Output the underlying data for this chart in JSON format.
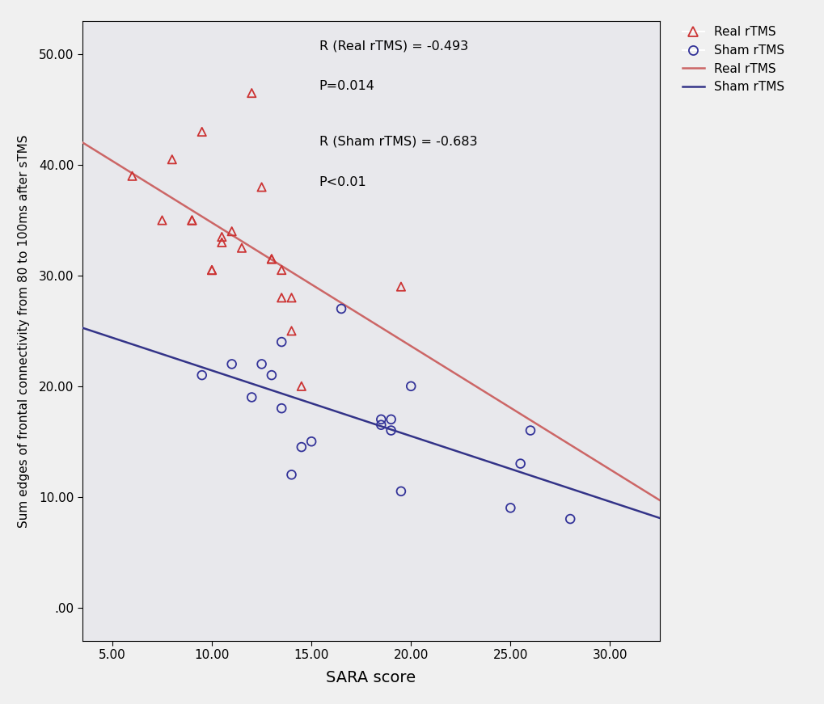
{
  "real_x": [
    6.0,
    7.5,
    8.0,
    9.0,
    9.0,
    9.5,
    10.0,
    10.0,
    10.5,
    10.5,
    11.0,
    11.5,
    12.0,
    12.5,
    13.0,
    13.0,
    13.5,
    13.5,
    14.0,
    14.0,
    14.5,
    19.5
  ],
  "real_y": [
    39.0,
    35.0,
    40.5,
    35.0,
    35.0,
    43.0,
    30.5,
    30.5,
    33.0,
    33.5,
    34.0,
    32.5,
    46.5,
    38.0,
    31.5,
    31.5,
    28.0,
    30.5,
    28.0,
    25.0,
    20.0,
    29.0
  ],
  "sham_x": [
    9.5,
    11.0,
    12.0,
    12.5,
    13.0,
    13.5,
    13.5,
    14.0,
    14.5,
    15.0,
    16.5,
    18.5,
    18.5,
    19.0,
    19.0,
    19.5,
    20.0,
    25.0,
    25.5,
    26.0,
    28.0
  ],
  "sham_y": [
    21.0,
    22.0,
    19.0,
    22.0,
    21.0,
    24.0,
    18.0,
    12.0,
    14.5,
    15.0,
    27.0,
    16.5,
    17.0,
    17.0,
    16.0,
    10.5,
    20.0,
    9.0,
    13.0,
    16.0,
    8.0
  ],
  "real_color": "#cc3333",
  "sham_color": "#333399",
  "real_line_color": "#cc6666",
  "sham_line_color": "#333388",
  "plot_bg_color": "#e8e8ec",
  "fig_bg_color": "#f0f0f0",
  "annotation_text_line1": "R (Real rTMS) = -0.493",
  "annotation_text_line2": "P=0.014",
  "annotation_text_line3": "R (Sham rTMS) = -0.683",
  "annotation_text_line4": "P<0.01",
  "xlabel": "SARA score",
  "ylabel": "Sum edges of frontal connectivity from 80 to 100ms after sTMS",
  "xlim": [
    3.5,
    32.5
  ],
  "ylim": [
    -3.0,
    53.0
  ],
  "xticks": [
    5.0,
    10.0,
    15.0,
    20.0,
    25.0,
    30.0
  ],
  "yticks": [
    0.0,
    10.0,
    20.0,
    30.0,
    40.0,
    50.0
  ],
  "xtick_labels": [
    "5.00",
    "10.00",
    "15.00",
    "20.00",
    "25.00",
    "30.00"
  ],
  "ytick_labels": [
    ".00",
    "10.00",
    "20.00",
    "30.00",
    "40.00",
    "50.00"
  ],
  "legend_scatter_real": "Real rTMS",
  "legend_scatter_sham": "Sham rTMS",
  "legend_line_real": "Real rTMS",
  "legend_line_sham": "Sham rTMS"
}
